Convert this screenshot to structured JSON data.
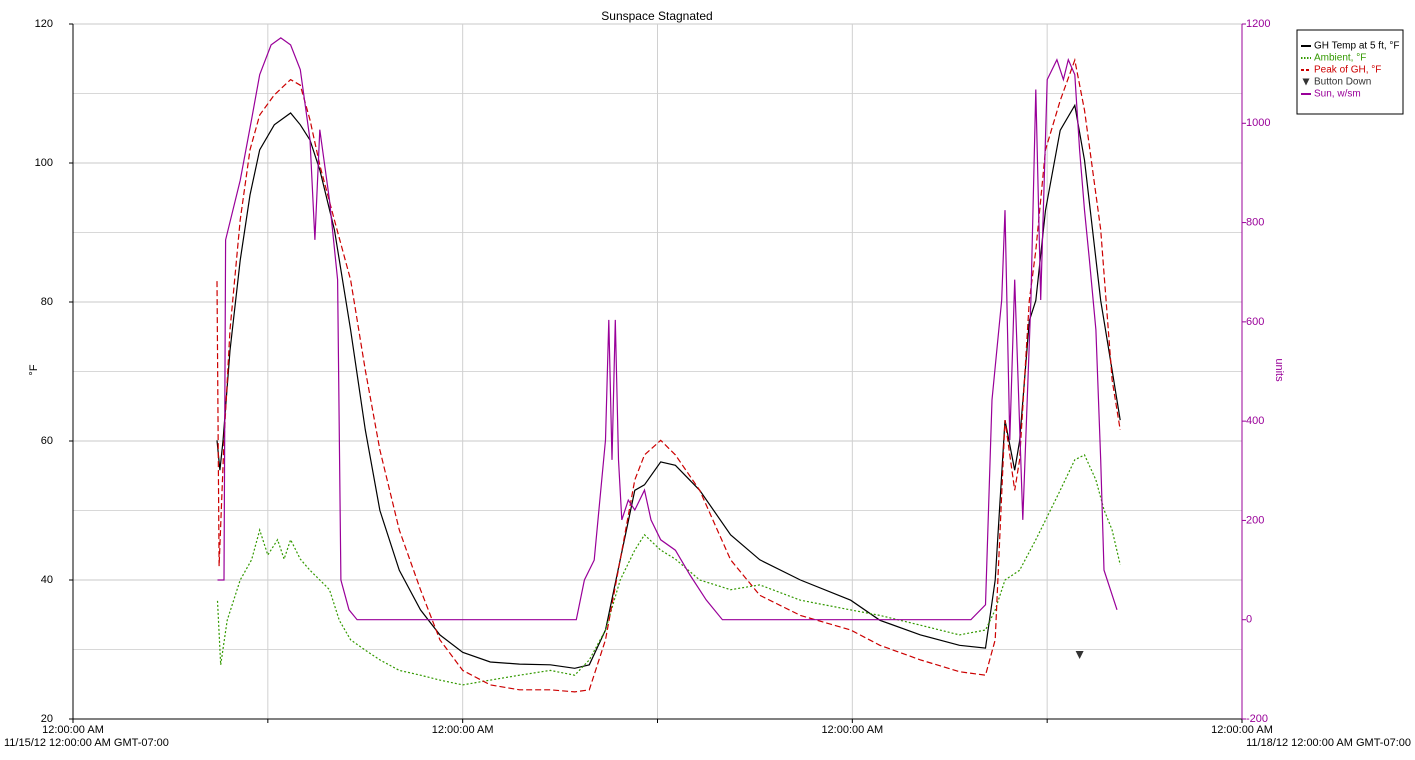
{
  "chart_data": {
    "type": "line",
    "title": "Sunspace Stagnated",
    "y_label": "°F",
    "y2_label": "units",
    "x_start_label": "11/15/12 12:00:00 AM GMT-07:00",
    "x_end_label": "11/18/12 12:00:00 AM GMT-07:00",
    "xlim": [
      0,
      72
    ],
    "xticks": [
      {
        "value": 0,
        "label": "12:00:00 AM"
      },
      {
        "value": 12,
        "label": null
      },
      {
        "value": 24,
        "label": "12:00:00 AM"
      },
      {
        "value": 36,
        "label": null
      },
      {
        "value": 48,
        "label": "12:00:00 AM"
      },
      {
        "value": 60,
        "label": null
      },
      {
        "value": 72,
        "label": "12:00:00 AM"
      }
    ],
    "ylim": [
      20,
      120
    ],
    "yticks": [
      20,
      40,
      60,
      80,
      100,
      120
    ],
    "yminor": [
      30,
      50,
      70,
      90,
      110
    ],
    "y2lim": [
      -200,
      1200
    ],
    "y2ticks": [
      -200,
      0,
      200,
      400,
      600,
      800,
      1000,
      1200
    ],
    "y2color": "#990099",
    "grid": true,
    "legend": "top-right",
    "series": [
      {
        "name": "GH Temp at 5 ft, °F",
        "color": "#000000",
        "style": "solid",
        "x": [
          8.87,
          9.05,
          9.24,
          9.67,
          10.3,
          10.9,
          11.5,
          12.4,
          13.4,
          14.0,
          14.6,
          15.2,
          16.1,
          17.1,
          18.0,
          18.9,
          20.1,
          21.4,
          22.6,
          24,
          25.7,
          27.5,
          29.4,
          30.9,
          31.8,
          32.8,
          33.7,
          34.6,
          35.2,
          36.2,
          37.1,
          38.6,
          40.5,
          42.3,
          44.8,
          47.9,
          49.7,
          52.2,
          54.6,
          56.2,
          56.8,
          57.4,
          58.0,
          58.3,
          58.9,
          59.3,
          59.9,
          60.8,
          61.7,
          62.3,
          63.3,
          64.0,
          64.5
        ],
        "values": [
          60.1,
          55.8,
          60,
          73,
          86,
          95.4,
          101.9,
          105.5,
          107.2,
          105.5,
          103.3,
          99,
          90.4,
          76,
          61.6,
          50,
          41.4,
          35.7,
          32.1,
          29.6,
          28.2,
          27.9,
          27.8,
          27.3,
          27.8,
          32.8,
          42.9,
          52.9,
          53.7,
          57,
          56.5,
          52.9,
          46.5,
          42.9,
          40,
          37.1,
          34.2,
          32.1,
          30.6,
          30.2,
          40,
          63,
          55.8,
          60,
          77.3,
          80.2,
          93.2,
          104.7,
          108.3,
          100.4,
          80.2,
          70.2,
          63
        ]
      },
      {
        "name": "Ambient, °F",
        "color": "#339900",
        "style": "dotted",
        "x": [
          8.9,
          9.1,
          9.5,
          10.3,
          11.0,
          11.5,
          12.0,
          12.6,
          13.0,
          13.4,
          14.0,
          14.6,
          15.2,
          15.8,
          16.4,
          17.1,
          18.0,
          18.9,
          20.1,
          21.4,
          22.6,
          24,
          25.7,
          27.5,
          29.4,
          30.9,
          31.8,
          32.8,
          33.7,
          34.6,
          35.2,
          36.2,
          37.1,
          38.6,
          40.5,
          42.3,
          44.8,
          47.9,
          49.7,
          52.2,
          54.6,
          56.2,
          56.8,
          57.4,
          58.3,
          59.3,
          59.9,
          60.8,
          61.7,
          62.3,
          63.0,
          63.5,
          64.0,
          64.5
        ],
        "values": [
          37,
          27.8,
          34.2,
          40,
          42.9,
          47.2,
          43.6,
          45.8,
          43,
          45.8,
          43,
          41.4,
          40,
          38.6,
          34.2,
          31.4,
          29.9,
          28.5,
          27,
          26.3,
          25.6,
          24.9,
          25.6,
          26.3,
          27,
          26.3,
          28.5,
          32.8,
          40,
          44.3,
          46.5,
          44.3,
          43,
          40,
          38.6,
          39.3,
          37.1,
          35.7,
          34.9,
          33.5,
          32.1,
          32.8,
          35.7,
          40,
          41.4,
          45.8,
          48.6,
          52.9,
          57.3,
          58,
          54.4,
          50.1,
          47.2,
          42.2
        ]
      },
      {
        "name": "Peak of GH, °F",
        "color": "#cc0000",
        "style": "dashed",
        "x": [
          8.87,
          9.0,
          9.3,
          9.67,
          10.3,
          10.9,
          11.5,
          12.4,
          13.4,
          14.0,
          14.6,
          15.2,
          16.1,
          17.1,
          18.0,
          18.9,
          20.1,
          21.4,
          22.6,
          24,
          25.7,
          27.5,
          29.4,
          30.9,
          31.8,
          32.8,
          33.7,
          34.6,
          35.2,
          36.2,
          37.1,
          38.6,
          40.5,
          42.3,
          44.8,
          47.9,
          49.7,
          52.2,
          54.6,
          56.2,
          56.8,
          57.4,
          58.0,
          58.3,
          58.9,
          59.3,
          59.9,
          60.8,
          61.7,
          62.3,
          63.3,
          64.0,
          64.5
        ],
        "values": [
          83,
          42,
          60,
          76,
          91.8,
          101.9,
          106.9,
          109.8,
          112,
          111.2,
          106.2,
          99.7,
          91.8,
          83.2,
          70.2,
          58.7,
          47.2,
          38.6,
          31.4,
          27,
          24.9,
          24.2,
          24.2,
          23.9,
          24.2,
          31.4,
          42.9,
          54.4,
          58,
          60.1,
          58,
          52.9,
          42.9,
          37.8,
          34.9,
          32.8,
          30.6,
          28.5,
          26.8,
          26.3,
          31.4,
          63,
          52.9,
          57.3,
          80.2,
          87.4,
          101.9,
          109,
          114.8,
          107.6,
          90.4,
          68.8,
          61.6
        ]
      },
      {
        "name": "Button Down",
        "color": "#333333",
        "style": "marker",
        "x": [
          62.0
        ],
        "values": [
          29.2
        ]
      },
      {
        "name": "Sun, w/sm",
        "color": "#990099",
        "style": "solid",
        "axis": "y2",
        "x": [
          8.9,
          9.3,
          9.4,
          10.3,
          11.0,
          11.5,
          12.2,
          12.8,
          13.4,
          14.0,
          14.6,
          14.9,
          15.2,
          15.8,
          16.3,
          16.5,
          17.0,
          17.5,
          31.0,
          31.5,
          32.1,
          32.8,
          33.0,
          33.2,
          33.4,
          33.6,
          33.8,
          34.2,
          34.6,
          35.2,
          35.6,
          36.2,
          37.1,
          38.0,
          39.0,
          40.0,
          55.3,
          56.2,
          56.6,
          57.2,
          57.4,
          57.7,
          58.0,
          58.5,
          59.0,
          59.3,
          59.6,
          60.0,
          60.6,
          61.0,
          61.3,
          61.7,
          62.0,
          62.3,
          62.6,
          63.0,
          63.3,
          63.5,
          63.9,
          64.3
        ],
        "values": [
          80,
          80,
          765,
          885,
          1008,
          1098,
          1158,
          1172,
          1158,
          1108,
          967,
          765,
          987,
          845,
          685,
          80,
          20,
          0,
          0,
          80,
          120,
          362,
          604,
          322,
          604,
          322,
          201,
          241,
          221,
          261,
          201,
          161,
          140,
          90,
          40,
          0,
          0,
          30,
          443,
          644,
          825,
          362,
          685,
          201,
          644,
          1068,
          644,
          1088,
          1128,
          1088,
          1128,
          1098,
          946,
          825,
          725,
          584,
          322,
          100,
          60,
          20
        ]
      }
    ]
  }
}
